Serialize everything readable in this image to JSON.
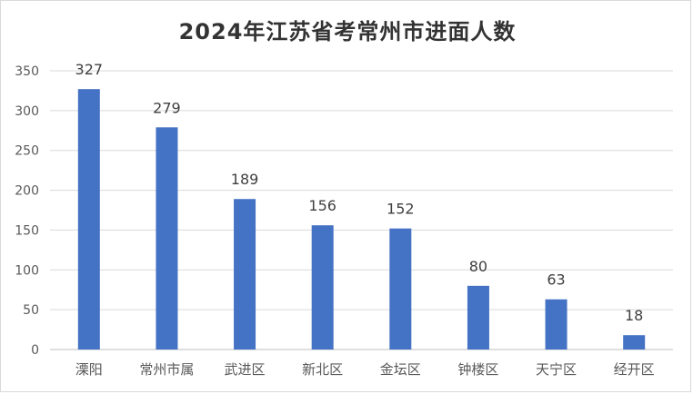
{
  "chart_data": {
    "type": "bar",
    "title": "2024年江苏省考常州市进面人数",
    "xlabel": "",
    "ylabel": "",
    "categories": [
      "溧阳",
      "常州市属",
      "武进区",
      "新北区",
      "金坛区",
      "钟楼区",
      "天宁区",
      "经开区"
    ],
    "values": [
      327,
      279,
      189,
      156,
      152,
      80,
      63,
      18
    ],
    "ylim": [
      0,
      350
    ],
    "yticks": [
      0,
      50,
      100,
      150,
      200,
      250,
      300,
      350
    ],
    "grid": true,
    "legend": "none",
    "data_labels": true,
    "colors": {
      "bar": "#4472c4",
      "grid": "#d9d9d9",
      "axis": "#bfbfbf"
    }
  }
}
